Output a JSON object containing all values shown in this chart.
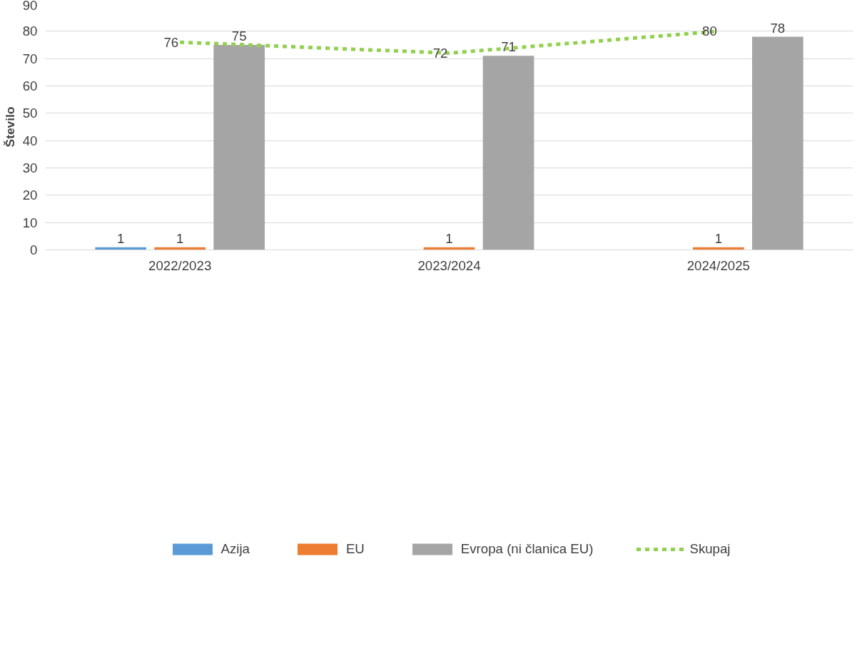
{
  "chart_data": {
    "type": "bar",
    "ylabel": "Število",
    "categories": [
      "2022/2023",
      "2023/2024",
      "2024/2025"
    ],
    "series": [
      {
        "name": "Azija",
        "color": "#5b9bd5",
        "values": [
          1,
          null,
          null
        ]
      },
      {
        "name": "EU",
        "color": "#ed7d31",
        "values": [
          1,
          1,
          1
        ]
      },
      {
        "name": "Evropa (ni članica EU)",
        "color": "#a5a5a5",
        "values": [
          75,
          71,
          78
        ]
      },
      {
        "name": "Skupaj",
        "type": "line",
        "color": "#92d050",
        "line_style": "dashed",
        "values": [
          76,
          72,
          80
        ]
      }
    ],
    "ylim": [
      0,
      90
    ],
    "yticks": [
      0,
      10,
      20,
      30,
      40,
      50,
      60,
      70,
      80,
      90
    ],
    "grid": "y",
    "legend": "bottom",
    "data_labels": true
  }
}
